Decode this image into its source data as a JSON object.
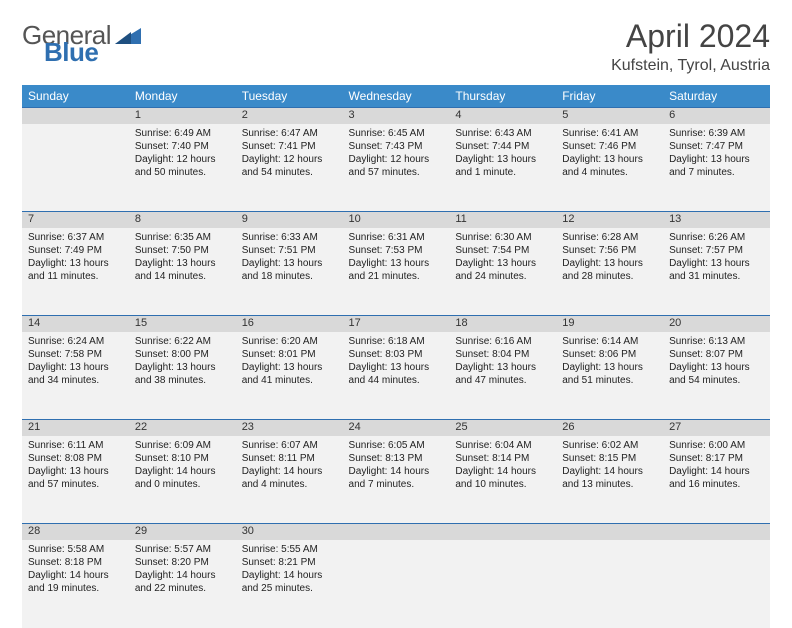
{
  "logo": {
    "text1": "General",
    "text2": "Blue",
    "color1": "#555555",
    "color2": "#2f6fb0"
  },
  "title": "April 2024",
  "subtitle": "Kufstein, Tyrol, Austria",
  "colors": {
    "header_bg": "#3a8ac9",
    "header_text": "#ffffff",
    "daynum_bg": "#d9d9d9",
    "cell_bg": "#f2f2f2",
    "rule": "#2f6fb0",
    "text": "#222222"
  },
  "day_headers": [
    "Sunday",
    "Monday",
    "Tuesday",
    "Wednesday",
    "Thursday",
    "Friday",
    "Saturday"
  ],
  "weeks": [
    {
      "nums": [
        "",
        "1",
        "2",
        "3",
        "4",
        "5",
        "6"
      ],
      "cells": [
        null,
        {
          "sunrise": "6:49 AM",
          "sunset": "7:40 PM",
          "daylight": "12 hours and 50 minutes."
        },
        {
          "sunrise": "6:47 AM",
          "sunset": "7:41 PM",
          "daylight": "12 hours and 54 minutes."
        },
        {
          "sunrise": "6:45 AM",
          "sunset": "7:43 PM",
          "daylight": "12 hours and 57 minutes."
        },
        {
          "sunrise": "6:43 AM",
          "sunset": "7:44 PM",
          "daylight": "13 hours and 1 minute."
        },
        {
          "sunrise": "6:41 AM",
          "sunset": "7:46 PM",
          "daylight": "13 hours and 4 minutes."
        },
        {
          "sunrise": "6:39 AM",
          "sunset": "7:47 PM",
          "daylight": "13 hours and 7 minutes."
        }
      ]
    },
    {
      "nums": [
        "7",
        "8",
        "9",
        "10",
        "11",
        "12",
        "13"
      ],
      "cells": [
        {
          "sunrise": "6:37 AM",
          "sunset": "7:49 PM",
          "daylight": "13 hours and 11 minutes."
        },
        {
          "sunrise": "6:35 AM",
          "sunset": "7:50 PM",
          "daylight": "13 hours and 14 minutes."
        },
        {
          "sunrise": "6:33 AM",
          "sunset": "7:51 PM",
          "daylight": "13 hours and 18 minutes."
        },
        {
          "sunrise": "6:31 AM",
          "sunset": "7:53 PM",
          "daylight": "13 hours and 21 minutes."
        },
        {
          "sunrise": "6:30 AM",
          "sunset": "7:54 PM",
          "daylight": "13 hours and 24 minutes."
        },
        {
          "sunrise": "6:28 AM",
          "sunset": "7:56 PM",
          "daylight": "13 hours and 28 minutes."
        },
        {
          "sunrise": "6:26 AM",
          "sunset": "7:57 PM",
          "daylight": "13 hours and 31 minutes."
        }
      ]
    },
    {
      "nums": [
        "14",
        "15",
        "16",
        "17",
        "18",
        "19",
        "20"
      ],
      "cells": [
        {
          "sunrise": "6:24 AM",
          "sunset": "7:58 PM",
          "daylight": "13 hours and 34 minutes."
        },
        {
          "sunrise": "6:22 AM",
          "sunset": "8:00 PM",
          "daylight": "13 hours and 38 minutes."
        },
        {
          "sunrise": "6:20 AM",
          "sunset": "8:01 PM",
          "daylight": "13 hours and 41 minutes."
        },
        {
          "sunrise": "6:18 AM",
          "sunset": "8:03 PM",
          "daylight": "13 hours and 44 minutes."
        },
        {
          "sunrise": "6:16 AM",
          "sunset": "8:04 PM",
          "daylight": "13 hours and 47 minutes."
        },
        {
          "sunrise": "6:14 AM",
          "sunset": "8:06 PM",
          "daylight": "13 hours and 51 minutes."
        },
        {
          "sunrise": "6:13 AM",
          "sunset": "8:07 PM",
          "daylight": "13 hours and 54 minutes."
        }
      ]
    },
    {
      "nums": [
        "21",
        "22",
        "23",
        "24",
        "25",
        "26",
        "27"
      ],
      "cells": [
        {
          "sunrise": "6:11 AM",
          "sunset": "8:08 PM",
          "daylight": "13 hours and 57 minutes."
        },
        {
          "sunrise": "6:09 AM",
          "sunset": "8:10 PM",
          "daylight": "14 hours and 0 minutes."
        },
        {
          "sunrise": "6:07 AM",
          "sunset": "8:11 PM",
          "daylight": "14 hours and 4 minutes."
        },
        {
          "sunrise": "6:05 AM",
          "sunset": "8:13 PM",
          "daylight": "14 hours and 7 minutes."
        },
        {
          "sunrise": "6:04 AM",
          "sunset": "8:14 PM",
          "daylight": "14 hours and 10 minutes."
        },
        {
          "sunrise": "6:02 AM",
          "sunset": "8:15 PM",
          "daylight": "14 hours and 13 minutes."
        },
        {
          "sunrise": "6:00 AM",
          "sunset": "8:17 PM",
          "daylight": "14 hours and 16 minutes."
        }
      ]
    },
    {
      "nums": [
        "28",
        "29",
        "30",
        "",
        "",
        "",
        ""
      ],
      "cells": [
        {
          "sunrise": "5:58 AM",
          "sunset": "8:18 PM",
          "daylight": "14 hours and 19 minutes."
        },
        {
          "sunrise": "5:57 AM",
          "sunset": "8:20 PM",
          "daylight": "14 hours and 22 minutes."
        },
        {
          "sunrise": "5:55 AM",
          "sunset": "8:21 PM",
          "daylight": "14 hours and 25 minutes."
        },
        null,
        null,
        null,
        null
      ]
    }
  ],
  "labels": {
    "sunrise": "Sunrise:",
    "sunset": "Sunset:",
    "daylight": "Daylight:"
  }
}
